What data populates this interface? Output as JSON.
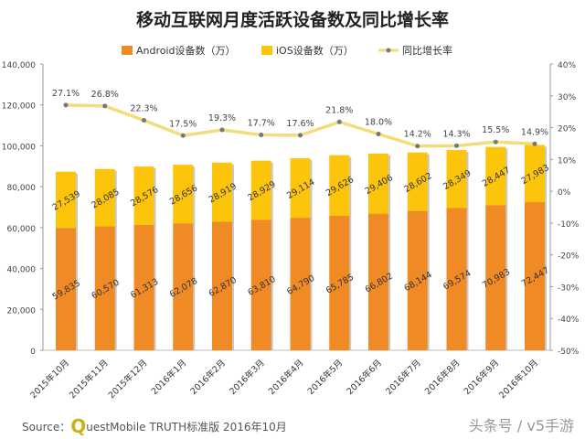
{
  "chart_data": {
    "type": "bar",
    "title": "移动互联网月度活跃设备数及同比增长率",
    "categories": [
      "2015年10月",
      "2015年11月",
      "2015年12月",
      "2016年1月",
      "2016年2月",
      "2016年3月",
      "2016年4月",
      "2016年5月",
      "2016年6月",
      "2016年7月",
      "2016年8月",
      "2016年9月",
      "2016年10月"
    ],
    "series": [
      {
        "name": "Android设备数（万）",
        "type": "stacked-bar",
        "color": "#f08a24",
        "values": [
          59835,
          60570,
          61313,
          62078,
          62870,
          63810,
          64790,
          65785,
          66802,
          68144,
          69574,
          70983,
          72447
        ]
      },
      {
        "name": "iOS设备数（万）",
        "type": "stacked-bar",
        "color": "#fcc40a",
        "values": [
          27539,
          28085,
          28576,
          28656,
          28919,
          28929,
          29114,
          29626,
          29406,
          28602,
          28349,
          28447,
          27983
        ]
      },
      {
        "name": "同比增长率",
        "type": "line",
        "axis": "right",
        "color": "#f2dd7a",
        "values": [
          27.1,
          26.8,
          22.3,
          17.5,
          19.3,
          17.7,
          17.6,
          21.8,
          18.0,
          14.2,
          14.3,
          15.5,
          14.9
        ]
      }
    ],
    "ylim": [
      0,
      140000
    ],
    "y_ticks": [
      "0",
      "20,000",
      "40,000",
      "60,000",
      "80,000",
      "100,000",
      "120,000",
      "140,000"
    ],
    "y2lim": [
      -50,
      40
    ],
    "y2_ticks": [
      "-50%",
      "-40%",
      "-30%",
      "-20%",
      "-10%",
      "0%",
      "10%",
      "20%",
      "30%",
      "40%"
    ],
    "grid": false,
    "legend": "top"
  },
  "source": {
    "prefix": "Source：",
    "q": "Q",
    "text": "uestMobile TRUTH标准版 2016年10月"
  },
  "watermark": "头条号 / v5手游"
}
